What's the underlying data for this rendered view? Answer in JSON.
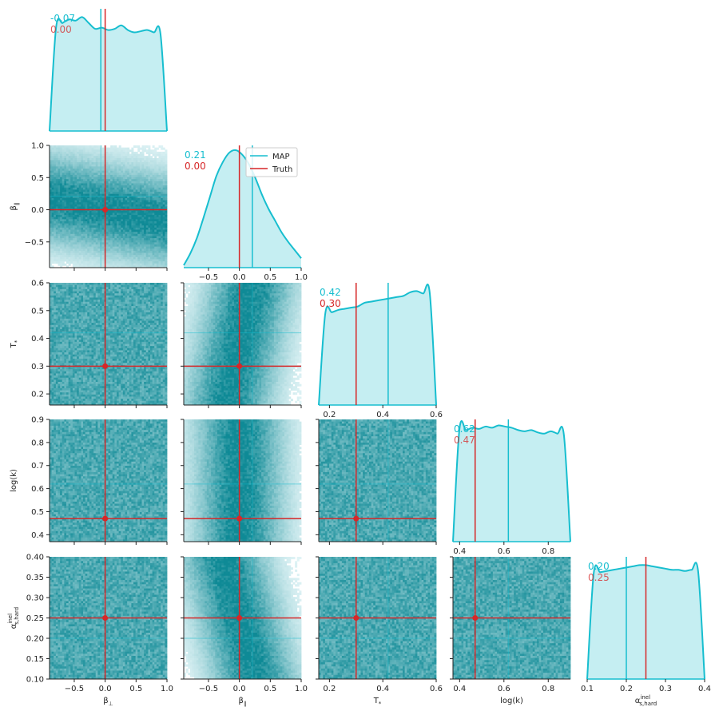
{
  "chart_data": {
    "type": "corner",
    "colors": {
      "map": "#17becf",
      "truth": "#d62728",
      "fill": "#c5eef2",
      "density_low": "#e9f8fa",
      "density_high": "#0f8a96"
    },
    "parameters": [
      {
        "label": "β⊥",
        "label_base": "β",
        "label_sub": "⊥",
        "range": [
          -0.9,
          1.0
        ],
        "ticks": [
          -0.5,
          0.0,
          0.5,
          1.0
        ],
        "tick_labels": [
          "−0.5",
          "0.0",
          "0.5",
          "1.0"
        ],
        "map": -0.07,
        "truth": 0.0,
        "map_text": "-0.07",
        "truth_text": "0.00",
        "density": [
          0.0,
          0.88,
          0.92,
          0.95,
          0.94,
          0.97,
          0.92,
          0.87,
          0.88,
          0.86,
          0.87,
          0.9,
          0.86,
          0.84,
          0.85,
          0.86,
          0.84,
          0.83,
          0.0
        ]
      },
      {
        "label": "β∥",
        "label_base": "β",
        "label_sub": "∥",
        "range": [
          -0.9,
          1.0
        ],
        "ticks": [
          -0.5,
          0.0,
          0.5,
          1.0
        ],
        "tick_labels": [
          "−0.5",
          "0.0",
          "0.5",
          "1.0"
        ],
        "map": 0.21,
        "truth": 0.0,
        "map_text": "0.21",
        "truth_text": "0.00",
        "density": [
          0.02,
          0.12,
          0.25,
          0.42,
          0.6,
          0.78,
          0.9,
          0.98,
          1.0,
          0.96,
          0.88,
          0.76,
          0.62,
          0.5,
          0.4,
          0.3,
          0.22,
          0.15,
          0.08
        ]
      },
      {
        "label": "T*",
        "label_base": "T",
        "label_sub": "*",
        "range": [
          0.16,
          0.6
        ],
        "ticks": [
          0.2,
          0.3,
          0.4,
          0.5,
          0.6
        ],
        "tick_labels": [
          "0.2",
          "0.3",
          "0.4",
          "0.5",
          "0.6"
        ],
        "map": 0.42,
        "truth": 0.3,
        "map_text": "0.42",
        "truth_text": "0.30",
        "density": [
          0.0,
          0.78,
          0.79,
          0.81,
          0.82,
          0.83,
          0.84,
          0.87,
          0.88,
          0.89,
          0.9,
          0.91,
          0.92,
          0.93,
          0.96,
          0.97,
          0.95,
          0.96,
          0.0
        ]
      },
      {
        "label": "log(k)",
        "label_base": "log(k)",
        "label_sub": "",
        "range": [
          0.37,
          0.9
        ],
        "ticks": [
          0.4,
          0.5,
          0.6,
          0.7,
          0.8,
          0.9
        ],
        "tick_labels": [
          "0.4",
          "0.5",
          "0.6",
          "0.7",
          "0.8",
          "0.9"
        ],
        "map": 0.62,
        "truth": 0.47,
        "map_text": "0.62",
        "truth_text": "0.47",
        "density": [
          0.0,
          0.96,
          0.95,
          0.97,
          0.96,
          0.98,
          0.97,
          0.99,
          0.98,
          0.97,
          0.95,
          0.94,
          0.95,
          0.93,
          0.92,
          0.94,
          0.92,
          0.91,
          0.0
        ]
      },
      {
        "label": "α_s,hard^inel",
        "label_base": "α",
        "label_sub": "s,hard",
        "label_sup": "inel",
        "range": [
          0.1,
          0.4
        ],
        "ticks": [
          0.1,
          0.15,
          0.2,
          0.25,
          0.3,
          0.35,
          0.4
        ],
        "tick_labels": [
          "0.10",
          "0.15",
          "0.20",
          "0.25",
          "0.30",
          "0.35",
          "0.40"
        ],
        "map": 0.2,
        "truth": 0.25,
        "map_text": "0.20",
        "truth_text": "0.25",
        "density": [
          0.0,
          0.9,
          0.91,
          0.92,
          0.93,
          0.94,
          0.95,
          0.96,
          0.97,
          0.97,
          0.96,
          0.95,
          0.94,
          0.93,
          0.93,
          0.92,
          0.93,
          0.92,
          0.0
        ]
      }
    ],
    "x_tick_lists": [
      [
        "−0.5",
        "0.0",
        "0.5",
        "1.0"
      ],
      [
        "−0.5",
        "0.0",
        "0.5",
        "1.0"
      ],
      [
        "0.2",
        "0.4",
        "0.6"
      ],
      [
        "0.4",
        "0.6",
        "0.8"
      ],
      [
        "0.1",
        "0.2",
        "0.3",
        "0.4"
      ]
    ],
    "x_tick_values": [
      [
        -0.5,
        0.0,
        0.5,
        1.0
      ],
      [
        -0.5,
        0.0,
        0.5,
        1.0
      ],
      [
        0.2,
        0.4,
        0.6
      ],
      [
        0.4,
        0.6,
        0.8
      ],
      [
        0.1,
        0.2,
        0.3,
        0.4
      ]
    ],
    "correlations": {
      "1-0": -0.3,
      "2-0": 0.0,
      "2-1": 0.35,
      "3-0": 0.0,
      "3-1": 0.0,
      "3-2": 0.0,
      "4-0": 0.0,
      "4-1": -0.45,
      "4-2": 0.0,
      "4-3": 0.0
    },
    "legend": {
      "placement": "top-right of β∥ diagonal panel",
      "entries": [
        "MAP",
        "Truth"
      ]
    }
  }
}
